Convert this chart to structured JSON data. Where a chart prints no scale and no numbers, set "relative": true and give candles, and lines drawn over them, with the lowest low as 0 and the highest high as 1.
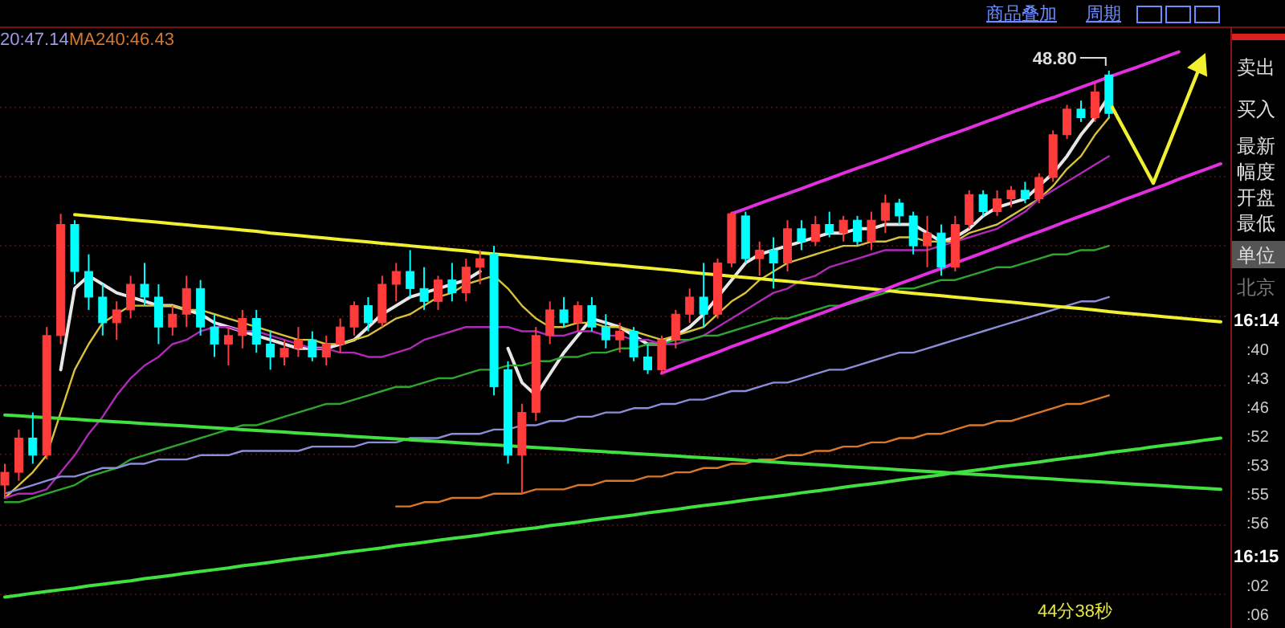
{
  "chart_data": {
    "type": "candlestick",
    "relative": true,
    "ref_lines": [
      {
        "axis": "y",
        "value": 0.914,
        "color": "#4a0e0e",
        "line_style": "dotted"
      },
      {
        "axis": "y",
        "value": 0.752,
        "color": "#4a0e0e",
        "line_style": "dotted"
      },
      {
        "axis": "y",
        "value": 0.59,
        "color": "#4a0e0e",
        "line_style": "dotted"
      },
      {
        "axis": "y",
        "value": 0.425,
        "color": "#4a0e0e",
        "line_style": "dotted"
      },
      {
        "axis": "y",
        "value": 0.263,
        "color": "#4a0e0e",
        "line_style": "dotted"
      },
      {
        "axis": "y",
        "value": 0.102,
        "color": "#4a0e0e",
        "line_style": "dotted"
      },
      {
        "axis": "y",
        "value": -0.064,
        "color": "#4a0e0e",
        "line_style": "dotted"
      },
      {
        "axis": "y",
        "value": -0.226,
        "color": "#4a0e0e",
        "line_style": "dotted"
      }
    ],
    "categories": [
      null,
      null,
      null,
      null,
      null,
      null,
      null,
      null,
      null,
      null,
      null,
      null,
      null,
      null,
      null,
      null,
      null,
      null,
      null,
      null,
      null,
      null,
      null,
      null,
      null,
      null,
      null,
      null,
      null,
      null,
      null,
      null,
      null,
      null,
      null,
      null,
      null,
      null,
      null,
      null,
      null,
      null,
      null,
      null,
      null,
      null,
      null,
      null,
      null,
      null,
      null,
      null,
      null,
      null,
      null,
      null,
      null,
      null,
      null,
      null,
      null,
      null,
      null,
      null,
      null,
      null,
      null,
      null,
      null,
      null,
      null,
      null,
      null,
      null,
      null,
      null,
      null,
      null,
      null,
      null,
      null,
      null,
      null,
      null,
      null,
      null,
      null,
      null
    ],
    "ohlc": [
      [
        0.03,
        0.08,
        0.0,
        0.06
      ],
      [
        0.06,
        0.16,
        0.04,
        0.14
      ],
      [
        0.14,
        0.2,
        0.08,
        0.1
      ],
      [
        0.1,
        0.4,
        0.09,
        0.38
      ],
      [
        0.38,
        0.665,
        0.36,
        0.64
      ],
      [
        0.64,
        0.65,
        0.5,
        0.53
      ],
      [
        0.53,
        0.57,
        0.44,
        0.47
      ],
      [
        0.47,
        0.5,
        0.38,
        0.41
      ],
      [
        0.41,
        0.46,
        0.37,
        0.44
      ],
      [
        0.44,
        0.52,
        0.42,
        0.5
      ],
      [
        0.5,
        0.55,
        0.45,
        0.47
      ],
      [
        0.47,
        0.5,
        0.36,
        0.4
      ],
      [
        0.4,
        0.45,
        0.38,
        0.43
      ],
      [
        0.43,
        0.52,
        0.4,
        0.49
      ],
      [
        0.49,
        0.51,
        0.38,
        0.4
      ],
      [
        0.4,
        0.43,
        0.33,
        0.36
      ],
      [
        0.36,
        0.4,
        0.31,
        0.38
      ],
      [
        0.38,
        0.44,
        0.35,
        0.42
      ],
      [
        0.42,
        0.44,
        0.34,
        0.36
      ],
      [
        0.36,
        0.39,
        0.3,
        0.33
      ],
      [
        0.33,
        0.37,
        0.31,
        0.35
      ],
      [
        0.35,
        0.4,
        0.33,
        0.37
      ],
      [
        0.37,
        0.39,
        0.32,
        0.33
      ],
      [
        0.33,
        0.38,
        0.31,
        0.36
      ],
      [
        0.36,
        0.42,
        0.34,
        0.4
      ],
      [
        0.4,
        0.46,
        0.38,
        0.45
      ],
      [
        0.45,
        0.47,
        0.39,
        0.41
      ],
      [
        0.41,
        0.52,
        0.4,
        0.5
      ],
      [
        0.5,
        0.55,
        0.46,
        0.53
      ],
      [
        0.53,
        0.58,
        0.47,
        0.49
      ],
      [
        0.49,
        0.54,
        0.44,
        0.46
      ],
      [
        0.46,
        0.52,
        0.44,
        0.51
      ],
      [
        0.51,
        0.55,
        0.46,
        0.48
      ],
      [
        0.48,
        0.56,
        0.46,
        0.54
      ],
      [
        0.54,
        0.58,
        0.5,
        0.56
      ],
      [
        0.57,
        0.59,
        0.24,
        0.26
      ],
      [
        0.3,
        0.32,
        0.08,
        0.1
      ],
      [
        0.1,
        0.22,
        0.01,
        0.2
      ],
      [
        0.2,
        0.4,
        0.18,
        0.38
      ],
      [
        0.38,
        0.46,
        0.36,
        0.44
      ],
      [
        0.44,
        0.47,
        0.4,
        0.41
      ],
      [
        0.41,
        0.46,
        0.39,
        0.45
      ],
      [
        0.45,
        0.47,
        0.39,
        0.4
      ],
      [
        0.4,
        0.43,
        0.35,
        0.37
      ],
      [
        0.37,
        0.41,
        0.34,
        0.39
      ],
      [
        0.39,
        0.4,
        0.32,
        0.33
      ],
      [
        0.33,
        0.36,
        0.29,
        0.3
      ],
      [
        0.3,
        0.38,
        0.29,
        0.37
      ],
      [
        0.37,
        0.44,
        0.35,
        0.43
      ],
      [
        0.43,
        0.49,
        0.41,
        0.47
      ],
      [
        0.47,
        0.55,
        0.4,
        0.43
      ],
      [
        0.43,
        0.56,
        0.42,
        0.55
      ],
      [
        0.55,
        0.67,
        0.54,
        0.665
      ],
      [
        0.66,
        0.67,
        0.55,
        0.56
      ],
      [
        0.56,
        0.6,
        0.52,
        0.58
      ],
      [
        0.58,
        0.61,
        0.49,
        0.55
      ],
      [
        0.55,
        0.65,
        0.53,
        0.63
      ],
      [
        0.63,
        0.65,
        0.58,
        0.6
      ],
      [
        0.6,
        0.66,
        0.59,
        0.64
      ],
      [
        0.64,
        0.67,
        0.61,
        0.62
      ],
      [
        0.62,
        0.66,
        0.6,
        0.65
      ],
      [
        0.65,
        0.66,
        0.59,
        0.6
      ],
      [
        0.6,
        0.67,
        0.58,
        0.65
      ],
      [
        0.65,
        0.71,
        0.62,
        0.69
      ],
      [
        0.69,
        0.7,
        0.64,
        0.66
      ],
      [
        0.66,
        0.67,
        0.57,
        0.59
      ],
      [
        0.59,
        0.66,
        0.54,
        0.62
      ],
      [
        0.62,
        0.64,
        0.52,
        0.54
      ],
      [
        0.54,
        0.66,
        0.53,
        0.64
      ],
      [
        0.64,
        0.72,
        0.63,
        0.71
      ],
      [
        0.71,
        0.72,
        0.66,
        0.67
      ],
      [
        0.67,
        0.72,
        0.66,
        0.7
      ],
      [
        0.7,
        0.73,
        0.68,
        0.72
      ],
      [
        0.72,
        0.74,
        0.69,
        0.7
      ],
      [
        0.7,
        0.76,
        0.69,
        0.75
      ],
      [
        0.75,
        0.86,
        0.74,
        0.85
      ],
      [
        0.85,
        0.92,
        0.84,
        0.91
      ],
      [
        0.91,
        0.93,
        0.88,
        0.89
      ],
      [
        0.89,
        0.97,
        0.88,
        0.95
      ],
      [
        0.99,
        1.0,
        0.89,
        0.9
      ],
      null,
      null,
      null,
      null,
      null,
      null,
      null,
      null
    ],
    "series": [
      {
        "type": "line",
        "color": "#e6e6e6",
        "values": [
          null,
          null,
          null,
          null,
          0.3,
          0.49,
          0.52,
          0.5,
          0.48,
          0.47,
          0.46,
          0.45,
          0.45,
          0.44,
          0.43,
          0.41,
          0.4,
          0.39,
          0.38,
          0.37,
          0.36,
          0.35,
          0.35,
          0.35,
          0.36,
          0.37,
          0.4,
          0.43,
          0.45,
          0.47,
          0.48,
          0.49,
          0.5,
          0.51,
          0.53,
          null,
          0.35,
          0.27,
          0.24,
          0.29,
          0.34,
          0.38,
          0.42,
          0.41,
          0.4,
          0.38,
          0.36,
          0.36,
          0.38,
          0.4,
          0.43,
          0.47,
          0.51,
          0.55,
          0.57,
          0.58,
          0.59,
          0.6,
          0.61,
          0.62,
          0.62,
          0.63,
          0.63,
          0.64,
          0.64,
          0.64,
          0.62,
          0.6,
          0.61,
          0.63,
          0.66,
          0.68,
          0.69,
          0.7,
          0.73,
          0.76,
          0.8,
          0.85,
          0.89,
          0.94,
          null,
          null,
          null,
          null,
          null,
          null,
          null,
          null
        ]
      },
      {
        "type": "line",
        "color": "#d9c23a",
        "values": [
          0.0,
          0.03,
          0.06,
          0.1,
          0.2,
          0.3,
          0.36,
          0.41,
          0.43,
          0.45,
          0.45,
          0.45,
          0.45,
          0.44,
          0.44,
          0.43,
          0.42,
          0.41,
          0.4,
          0.39,
          0.38,
          0.37,
          0.37,
          0.36,
          0.36,
          0.37,
          0.38,
          0.4,
          0.42,
          0.43,
          0.45,
          0.47,
          0.48,
          0.5,
          0.51,
          0.52,
          0.49,
          0.45,
          0.42,
          0.4,
          0.4,
          0.41,
          0.41,
          0.4,
          0.4,
          0.39,
          0.38,
          0.37,
          0.38,
          0.39,
          0.4,
          0.43,
          0.46,
          0.48,
          0.51,
          0.53,
          0.55,
          0.56,
          0.57,
          0.58,
          0.59,
          0.59,
          0.6,
          0.6,
          0.61,
          0.61,
          0.6,
          0.6,
          0.6,
          0.62,
          0.63,
          0.64,
          0.66,
          0.68,
          0.7,
          0.73,
          0.77,
          0.8,
          0.85,
          0.89,
          null,
          null,
          null,
          null,
          null,
          null,
          null,
          null
        ]
      },
      {
        "type": "line",
        "color": "#b02ab8",
        "values": [
          0.0,
          0.01,
          0.01,
          0.02,
          0.06,
          0.1,
          0.15,
          0.19,
          0.24,
          0.28,
          0.31,
          0.33,
          0.36,
          0.37,
          0.39,
          0.4,
          0.4,
          0.39,
          0.39,
          0.38,
          0.37,
          0.36,
          0.35,
          0.35,
          0.34,
          0.34,
          0.33,
          0.33,
          0.34,
          0.35,
          0.37,
          0.38,
          0.39,
          0.4,
          0.4,
          0.4,
          0.4,
          0.39,
          0.39,
          0.38,
          0.38,
          0.39,
          0.39,
          0.38,
          0.38,
          0.37,
          0.37,
          0.36,
          0.36,
          0.37,
          0.38,
          0.4,
          0.42,
          0.44,
          0.46,
          0.48,
          0.49,
          0.51,
          0.52,
          0.54,
          0.55,
          0.56,
          0.57,
          0.58,
          0.58,
          0.58,
          0.58,
          0.59,
          0.6,
          0.61,
          0.62,
          0.63,
          0.65,
          0.67,
          0.7,
          0.72,
          0.74,
          0.76,
          0.78,
          0.8,
          null,
          null,
          null,
          null,
          null,
          null,
          null,
          null
        ]
      },
      {
        "type": "line",
        "color": "#2fa52f",
        "values": [
          -0.01,
          -0.01,
          0.0,
          0.01,
          0.02,
          0.03,
          0.05,
          0.06,
          0.07,
          0.09,
          0.1,
          0.11,
          0.12,
          0.13,
          0.14,
          0.15,
          0.16,
          0.17,
          0.17,
          0.18,
          0.19,
          0.2,
          0.21,
          0.22,
          0.22,
          0.23,
          0.24,
          0.25,
          0.26,
          0.26,
          0.27,
          0.28,
          0.28,
          0.29,
          0.3,
          0.3,
          0.31,
          0.31,
          0.32,
          0.32,
          0.33,
          0.33,
          0.34,
          0.34,
          0.35,
          0.35,
          0.36,
          0.36,
          0.37,
          0.37,
          0.38,
          0.38,
          0.39,
          0.4,
          0.41,
          0.42,
          0.42,
          0.43,
          0.44,
          0.45,
          0.45,
          0.46,
          0.47,
          0.48,
          0.49,
          0.49,
          0.5,
          0.51,
          0.51,
          0.52,
          0.53,
          0.54,
          0.54,
          0.55,
          0.56,
          0.57,
          0.57,
          0.58,
          0.58,
          0.59,
          null,
          null,
          null,
          null,
          null,
          null,
          null,
          null
        ]
      },
      {
        "type": "line",
        "color": "#8c8cd8",
        "values": [
          0.01,
          0.02,
          0.03,
          0.04,
          0.05,
          0.05,
          0.06,
          0.07,
          0.07,
          0.08,
          0.08,
          0.09,
          0.09,
          0.09,
          0.1,
          0.1,
          0.1,
          0.11,
          0.11,
          0.11,
          0.11,
          0.11,
          0.12,
          0.12,
          0.12,
          0.12,
          0.13,
          0.13,
          0.13,
          0.14,
          0.14,
          0.14,
          0.15,
          0.15,
          0.15,
          0.16,
          0.16,
          0.17,
          0.17,
          0.18,
          0.18,
          0.19,
          0.19,
          0.2,
          0.2,
          0.21,
          0.21,
          0.22,
          0.22,
          0.23,
          0.23,
          0.24,
          0.25,
          0.25,
          0.26,
          0.27,
          0.27,
          0.28,
          0.29,
          0.3,
          0.3,
          0.31,
          0.32,
          0.33,
          0.34,
          0.34,
          0.35,
          0.36,
          0.37,
          0.38,
          0.39,
          0.4,
          0.41,
          0.42,
          0.43,
          0.44,
          0.45,
          0.46,
          0.46,
          0.47,
          null,
          null,
          null,
          null,
          null,
          null,
          null,
          null
        ]
      },
      {
        "type": "line",
        "color": "#d8772a",
        "values": [
          null,
          null,
          null,
          null,
          null,
          null,
          null,
          null,
          null,
          null,
          null,
          null,
          null,
          null,
          null,
          null,
          null,
          null,
          null,
          null,
          null,
          null,
          null,
          null,
          null,
          null,
          null,
          null,
          -0.02,
          -0.02,
          -0.01,
          -0.01,
          0.0,
          0.0,
          0.0,
          0.01,
          0.01,
          0.01,
          0.02,
          0.02,
          0.02,
          0.03,
          0.03,
          0.04,
          0.04,
          0.04,
          0.05,
          0.05,
          0.06,
          0.06,
          0.07,
          0.07,
          0.08,
          0.08,
          0.09,
          0.09,
          0.1,
          0.1,
          0.11,
          0.11,
          0.12,
          0.12,
          0.13,
          0.13,
          0.14,
          0.14,
          0.15,
          0.15,
          0.16,
          0.17,
          0.17,
          0.18,
          0.18,
          0.19,
          0.2,
          0.21,
          0.22,
          0.22,
          0.23,
          0.24,
          null,
          null,
          null,
          null,
          null,
          null,
          null,
          null
        ]
      },
      {
        "type": "line",
        "color": "#f0f030",
        "values": [
          null,
          null,
          null,
          null,
          null,
          0.663,
          0.66,
          0.657,
          0.654,
          0.651,
          0.648,
          0.645,
          0.642,
          0.639,
          0.636,
          0.633,
          0.63,
          0.627,
          0.624,
          0.62,
          0.617,
          0.614,
          0.611,
          0.608,
          0.605,
          0.602,
          0.599,
          0.596,
          0.593,
          0.59,
          0.587,
          0.584,
          0.581,
          0.578,
          0.574,
          0.571,
          0.568,
          0.565,
          0.562,
          0.559,
          0.556,
          0.553,
          0.55,
          0.547,
          0.544,
          0.541,
          0.538,
          0.535,
          0.532,
          0.528,
          0.525,
          0.522,
          0.519,
          0.516,
          0.513,
          0.51,
          0.507,
          0.504,
          0.501,
          0.498,
          0.495,
          0.492,
          0.489,
          0.486,
          0.482,
          0.479,
          0.476,
          0.473,
          0.47,
          0.467,
          0.464,
          0.461,
          0.458,
          0.455,
          0.452,
          0.449,
          0.446,
          0.443,
          0.44,
          0.436,
          0.433,
          0.43,
          0.427,
          0.424,
          0.421,
          0.418,
          0.415,
          0.412
        ]
      },
      {
        "type": "line",
        "color": "#e030e0",
        "values": [
          null,
          null,
          null,
          null,
          null,
          null,
          null,
          null,
          null,
          null,
          null,
          null,
          null,
          null,
          null,
          null,
          null,
          null,
          null,
          null,
          null,
          null,
          null,
          null,
          null,
          null,
          null,
          null,
          null,
          null,
          null,
          null,
          null,
          null,
          null,
          null,
          null,
          null,
          null,
          null,
          null,
          null,
          null,
          null,
          null,
          null,
          null,
          null,
          null,
          null,
          null,
          null,
          0.665,
          0.677,
          0.689,
          0.701,
          0.712,
          0.724,
          0.736,
          0.748,
          0.76,
          0.772,
          0.783,
          0.795,
          0.807,
          0.819,
          0.831,
          0.843,
          0.854,
          0.866,
          0.878,
          0.89,
          0.902,
          0.914,
          0.926,
          0.937,
          0.949,
          0.961,
          0.973,
          0.985,
          0.997,
          1.008,
          1.02,
          1.032,
          1.044,
          null,
          null,
          null
        ]
      },
      {
        "type": "line",
        "color": "#e030e0",
        "values": [
          null,
          null,
          null,
          null,
          null,
          null,
          null,
          null,
          null,
          null,
          null,
          null,
          null,
          null,
          null,
          null,
          null,
          null,
          null,
          null,
          null,
          null,
          null,
          null,
          null,
          null,
          null,
          null,
          null,
          null,
          null,
          null,
          null,
          null,
          null,
          null,
          null,
          null,
          null,
          null,
          null,
          null,
          null,
          null,
          null,
          null,
          null,
          0.292,
          0.305,
          0.317,
          0.329,
          0.341,
          0.354,
          0.366,
          0.378,
          0.39,
          0.403,
          0.415,
          0.427,
          0.439,
          0.452,
          0.464,
          0.476,
          0.488,
          0.501,
          0.513,
          0.525,
          0.537,
          0.55,
          0.562,
          0.574,
          0.586,
          0.599,
          0.611,
          0.623,
          0.635,
          0.648,
          0.66,
          0.672,
          0.684,
          0.697,
          0.709,
          0.721,
          0.733,
          0.746,
          0.758,
          0.77,
          0.782
        ]
      },
      {
        "type": "line",
        "color": "#40e040",
        "values": [
          0.194,
          0.192,
          0.19,
          0.188,
          0.186,
          0.184,
          0.182,
          0.18,
          0.178,
          0.176,
          0.174,
          0.172,
          0.17,
          0.168,
          0.166,
          0.164,
          0.162,
          0.16,
          0.158,
          0.156,
          0.154,
          0.152,
          0.15,
          0.148,
          0.146,
          0.144,
          0.142,
          0.14,
          0.138,
          0.136,
          0.134,
          0.132,
          0.13,
          0.128,
          0.126,
          0.124,
          0.122,
          0.12,
          0.118,
          0.116,
          0.114,
          0.112,
          0.11,
          0.108,
          0.106,
          0.104,
          0.102,
          0.1,
          0.098,
          0.096,
          0.094,
          0.092,
          0.09,
          0.088,
          0.086,
          0.084,
          0.082,
          0.08,
          0.078,
          0.076,
          0.074,
          0.072,
          0.07,
          0.068,
          0.066,
          0.064,
          0.062,
          0.06,
          0.058,
          0.056,
          0.054,
          0.052,
          0.05,
          0.048,
          0.046,
          0.044,
          0.042,
          0.04,
          0.038,
          0.036,
          0.034,
          0.032,
          0.03,
          0.028,
          0.026,
          0.024,
          0.022,
          0.02
        ]
      },
      {
        "type": "line",
        "color": "#40e040",
        "values": [
          -0.232,
          -0.228,
          -0.223,
          -0.219,
          -0.215,
          -0.211,
          -0.206,
          -0.202,
          -0.198,
          -0.194,
          -0.189,
          -0.185,
          -0.181,
          -0.176,
          -0.172,
          -0.168,
          -0.164,
          -0.159,
          -0.155,
          -0.151,
          -0.146,
          -0.142,
          -0.138,
          -0.134,
          -0.129,
          -0.125,
          -0.121,
          -0.117,
          -0.112,
          -0.108,
          -0.104,
          -0.099,
          -0.095,
          -0.091,
          -0.087,
          -0.082,
          -0.078,
          -0.074,
          -0.07,
          -0.065,
          -0.061,
          -0.057,
          -0.052,
          -0.048,
          -0.044,
          -0.04,
          -0.035,
          -0.031,
          -0.027,
          -0.022,
          -0.018,
          -0.014,
          -0.01,
          -0.005,
          -0.001,
          0.003,
          0.007,
          0.012,
          0.016,
          0.02,
          0.025,
          0.029,
          0.033,
          0.037,
          0.042,
          0.046,
          0.05,
          0.054,
          0.059,
          0.063,
          0.067,
          0.072,
          0.076,
          0.08,
          0.084,
          0.089,
          0.093,
          0.097,
          0.101,
          0.106,
          0.11,
          0.114,
          0.119,
          0.123,
          0.127,
          0.131,
          0.136,
          0.14
        ]
      }
    ],
    "annotations": [
      "48.80",
      "20:47.14",
      "MA240:46.43",
      "商品叠加",
      "周期",
      "卖出",
      "买入",
      "最新",
      "幅度",
      "开盘",
      "最低",
      "单位",
      "北京",
      "16:14",
      ":40",
      ":43",
      ":46",
      ":52",
      ":53",
      ":55",
      ":56",
      "16:15",
      ":02",
      ":06",
      "44分38秒"
    ]
  }
}
